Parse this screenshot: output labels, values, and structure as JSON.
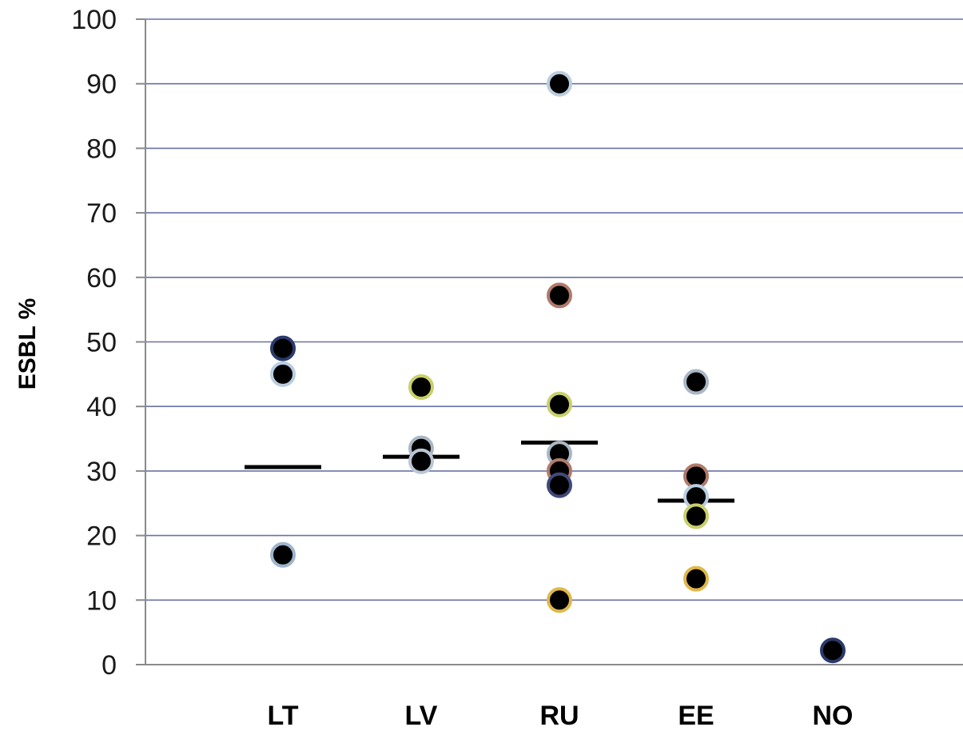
{
  "chart_data": {
    "type": "scatter",
    "title": "",
    "xlabel": "",
    "ylabel": "ESBL %",
    "ylim": [
      0,
      100
    ],
    "yticks": [
      0,
      10,
      20,
      30,
      40,
      50,
      60,
      70,
      80,
      90,
      100
    ],
    "categories": [
      "LT",
      "LV",
      "RU",
      "EE",
      "NO"
    ],
    "grid": true,
    "legend": "none",
    "points": [
      {
        "category": "LT",
        "y": 49.0,
        "ring": "#2b3a6b"
      },
      {
        "category": "LT",
        "y": 45.0,
        "ring": "#b9cde0"
      },
      {
        "category": "LT",
        "y": 17.0,
        "ring": "#9fb4cc"
      },
      {
        "category": "LV",
        "y": 43.0,
        "ring": "#c9cf6a"
      },
      {
        "category": "LV",
        "y": 33.5,
        "ring": "#aab7c4"
      },
      {
        "category": "LV",
        "y": 31.5,
        "ring": "#b9c6d6"
      },
      {
        "category": "RU",
        "y": 90.0,
        "ring": "#b9cde0"
      },
      {
        "category": "RU",
        "y": 57.2,
        "ring": "#b07a6a"
      },
      {
        "category": "RU",
        "y": 40.3,
        "ring": "#c9cf6a"
      },
      {
        "category": "RU",
        "y": 32.7,
        "ring": "#aab7c4"
      },
      {
        "category": "RU",
        "y": 30.0,
        "ring": "#b07a6a"
      },
      {
        "category": "RU",
        "y": 27.8,
        "ring": "#3f4a7a"
      },
      {
        "category": "RU",
        "y": 10.0,
        "ring": "#e0b84a"
      },
      {
        "category": "EE",
        "y": 43.8,
        "ring": "#aab7c4"
      },
      {
        "category": "EE",
        "y": 29.2,
        "ring": "#b07a6a"
      },
      {
        "category": "EE",
        "y": 26.0,
        "ring": "#b9cde0"
      },
      {
        "category": "EE",
        "y": 23.0,
        "ring": "#c9cf6a"
      },
      {
        "category": "EE",
        "y": 13.3,
        "ring": "#e0b84a"
      },
      {
        "category": "NO",
        "y": 2.2,
        "ring": "#2b3a6b"
      }
    ],
    "medians": [
      {
        "category": "LT",
        "y": 30.6
      },
      {
        "category": "LV",
        "y": 32.2
      },
      {
        "category": "RU",
        "y": 34.4
      },
      {
        "category": "EE",
        "y": 25.4
      }
    ],
    "colors": {
      "grid": "#6a72a8",
      "axis": "#8a8a8a",
      "point_fill": "#000000",
      "median": "#000000"
    }
  }
}
